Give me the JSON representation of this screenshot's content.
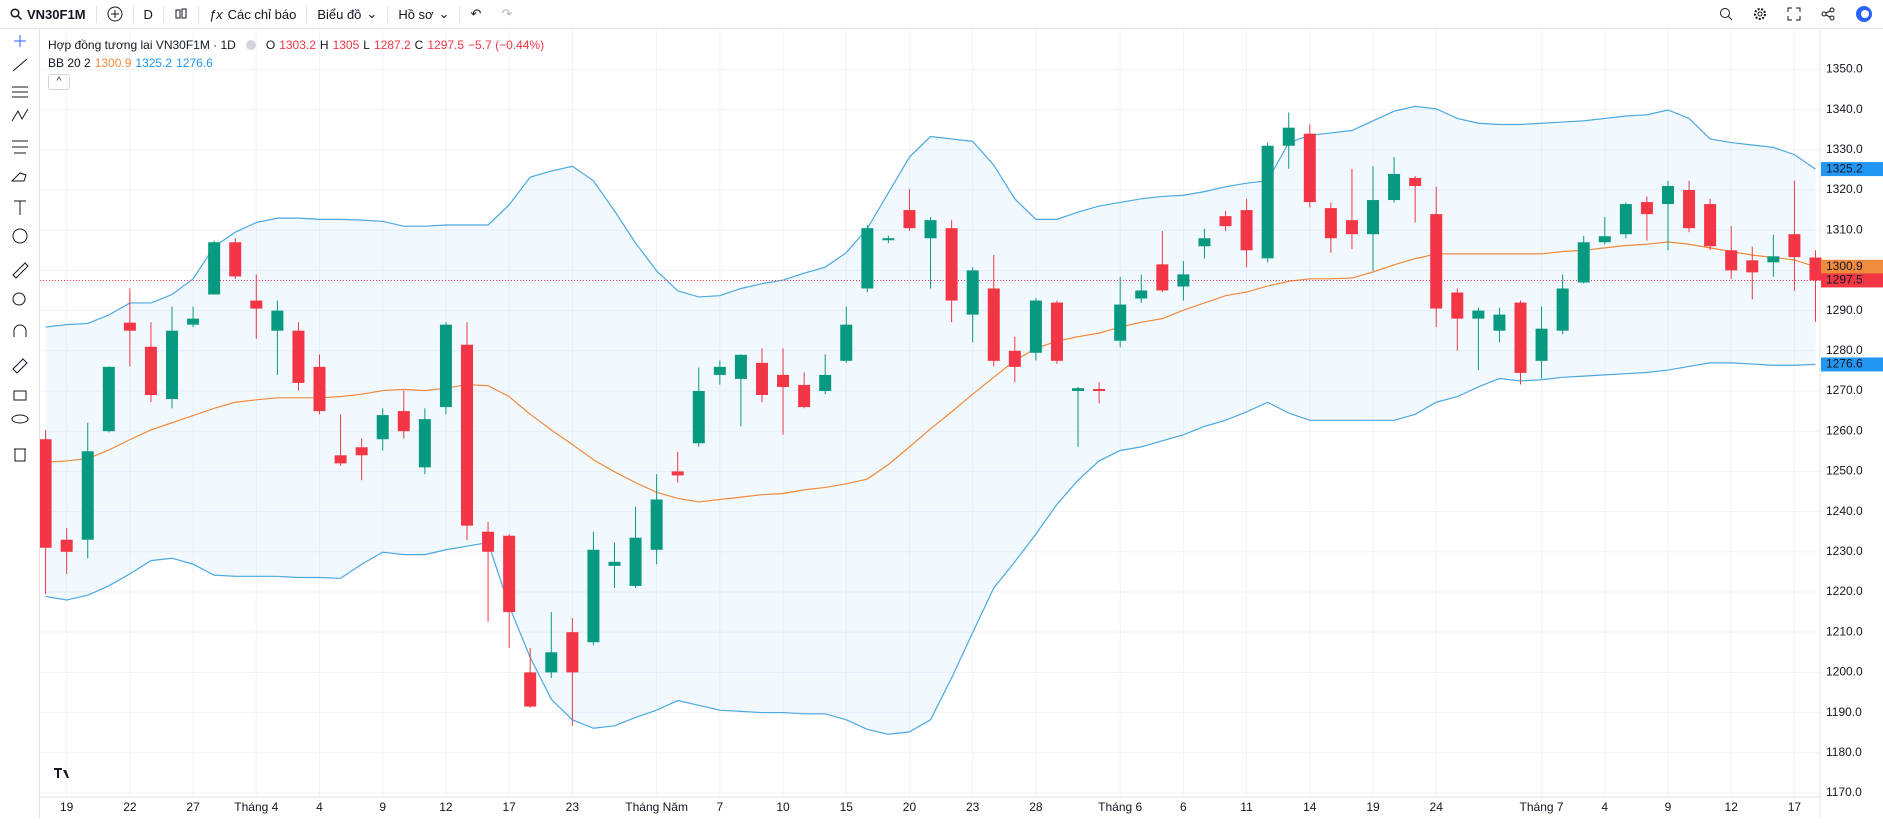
{
  "toolbar": {
    "symbol": "VN30F1M",
    "interval": "D",
    "indicators": "Các chỉ báo",
    "chart": "Biểu đồ",
    "profile": "Hồ sơ"
  },
  "legend": {
    "o": "O",
    "h": "H",
    "l": "L",
    "c": "C",
    "change": "−5.7 (−0.44%)",
    "indicator": "BB 20 2"
  },
  "chart_data": {
    "type": "candlestick",
    "title": "Hợp đồng tương lai VN30F1M · 1D",
    "up_color": "#089981",
    "down_color": "#f23645",
    "band_color": "#4ba8e0",
    "middle_color": "#f08a3c",
    "band_fill": "rgba(33,150,243,0.06)",
    "grid": true,
    "ylim": [
      1169,
      1359.8
    ],
    "yticks": [
      {
        "value": 1170,
        "label": "1170.0"
      },
      {
        "value": 1180,
        "label": "1180.0"
      },
      {
        "value": 1190,
        "label": "1190.0"
      },
      {
        "value": 1200,
        "label": "1200.0"
      },
      {
        "value": 1210,
        "label": "1210.0"
      },
      {
        "value": 1220,
        "label": "1220.0"
      },
      {
        "value": 1230,
        "label": "1230.0"
      },
      {
        "value": 1240,
        "label": "1240.0"
      },
      {
        "value": 1250,
        "label": "1250.0"
      },
      {
        "value": 1260,
        "label": "1260.0"
      },
      {
        "value": 1270,
        "label": "1270.0"
      },
      {
        "value": 1280,
        "label": "1280.0"
      },
      {
        "value": 1290,
        "label": "1290.0"
      },
      {
        "value": 1300,
        "label": "1300.0"
      },
      {
        "value": 1310,
        "label": "1310.0"
      },
      {
        "value": 1320,
        "label": "1320.0"
      },
      {
        "value": 1330,
        "label": "1330.0"
      },
      {
        "value": 1340,
        "label": "1340.0"
      },
      {
        "value": 1350,
        "label": "1350.0"
      }
    ],
    "categories": [
      null,
      "19",
      null,
      null,
      "22",
      null,
      null,
      "27",
      null,
      null,
      "Tháng 4",
      null,
      null,
      "4",
      null,
      null,
      "9",
      null,
      null,
      "12",
      null,
      null,
      "17",
      null,
      null,
      "23",
      null,
      null,
      null,
      "Tháng Năm",
      null,
      null,
      "7",
      null,
      null,
      "10",
      null,
      null,
      "15",
      null,
      null,
      "20",
      null,
      null,
      "23",
      null,
      null,
      "28",
      null,
      null,
      null,
      "Tháng 6",
      null,
      null,
      "6",
      null,
      null,
      "11",
      null,
      null,
      "14",
      null,
      null,
      "19",
      null,
      null,
      "24",
      null,
      null,
      null,
      null,
      "Tháng 7",
      null,
      null,
      "4",
      null,
      null,
      "9",
      null,
      null,
      "12",
      null,
      null,
      "17",
      null
    ],
    "open": [
      1258,
      1233,
      1233,
      1260,
      1287,
      1281,
      1268,
      1286.5,
      1294,
      1307,
      1292.5,
      1285,
      1285,
      1276,
      1254,
      1256,
      1258,
      1265,
      1251,
      1266,
      1281.5,
      1235,
      1234,
      1200,
      1200,
      1210,
      1207.5,
      1226.5,
      1221.5,
      1230.5,
      1250,
      1257,
      1274,
      1273,
      1277,
      1274,
      1271.5,
      1270,
      1277.5,
      1295.5,
      1307.5,
      1315,
      1308,
      1310.5,
      1289,
      1295.5,
      1280,
      1279.5,
      1292,
      1270,
      1270.5,
      1282.5,
      1293,
      1301.5,
      1296,
      1306,
      1313.5,
      1315,
      1303,
      1331,
      1334,
      1315.5,
      1312.5,
      1309,
      1317.5,
      1323,
      1314,
      1294.5,
      1288,
      1285,
      1292,
      1277.5,
      1285,
      1297,
      1307,
      1309,
      1317,
      1316.5,
      1320,
      1316.5,
      1305,
      1302.5,
      1302,
      1309,
      1303.2
    ],
    "high": [
      1260.3,
      1235.9,
      1262.1,
      1276.1,
      1295.5,
      1287.1,
      1291,
      1291,
      1307.4,
      1308,
      1299,
      1292.5,
      1287.1,
      1279.1,
      1264.2,
      1258.2,
      1265.7,
      1270.1,
      1265.7,
      1287.1,
      1287.1,
      1237.4,
      1234.4,
      1206.1,
      1215,
      1213.5,
      1235,
      1232.3,
      1241.2,
      1249.3,
      1254.9,
      1275.8,
      1277.6,
      1279.1,
      1280.6,
      1280.6,
      1274.6,
      1279.1,
      1291,
      1311.3,
      1308.6,
      1320.2,
      1313.3,
      1312.5,
      1300.8,
      1303.8,
      1283.5,
      1293.1,
      1292.5,
      1271,
      1272.2,
      1298.4,
      1299,
      1309.8,
      1302.3,
      1310.4,
      1314.8,
      1317.8,
      1331.8,
      1339.3,
      1336.3,
      1316.9,
      1325.3,
      1325.9,
      1328.2,
      1323.5,
      1320.8,
      1295.5,
      1290.7,
      1290.7,
      1292.5,
      1291,
      1299,
      1308.6,
      1313.3,
      1316.9,
      1318.4,
      1322.3,
      1322.3,
      1317.8,
      1311,
      1305.9,
      1308.9,
      1322.3,
      1305.0
    ],
    "low": [
      1219.5,
      1224.5,
      1228.4,
      1259.7,
      1276.1,
      1267.2,
      1265.7,
      1285.9,
      1294,
      1297.9,
      1283,
      1274,
      1270.1,
      1264.2,
      1251.4,
      1247.8,
      1255.2,
      1258.2,
      1249.3,
      1264.2,
      1232.9,
      1212.6,
      1206.1,
      1191.2,
      1198.6,
      1186.7,
      1206.7,
      1221,
      1221,
      1226.9,
      1247.2,
      1256.1,
      1271.6,
      1261.2,
      1267.2,
      1259.1,
      1265.7,
      1269.2,
      1277,
      1294.6,
      1306.8,
      1309.8,
      1295.5,
      1287.1,
      1282.1,
      1276.1,
      1272.2,
      1277.6,
      1276.7,
      1256.1,
      1266.9,
      1280.9,
      1291.9,
      1294.6,
      1292.5,
      1302.9,
      1309.8,
      1300.8,
      1302,
      1325.3,
      1315.7,
      1304.4,
      1305.3,
      1299.9,
      1316.9,
      1311.9,
      1285.9,
      1280,
      1275.2,
      1282.1,
      1271.6,
      1273.1,
      1284.1,
      1296.7,
      1306.5,
      1308,
      1307.4,
      1305,
      1309.5,
      1305,
      1297.9,
      1292.8,
      1298.4,
      1294.9,
      1287.2
    ],
    "close": [
      1231,
      1230,
      1255,
      1276,
      1285,
      1269,
      1285,
      1288,
      1307,
      1298.5,
      1290.5,
      1290,
      1272,
      1265,
      1252,
      1254,
      1264,
      1260,
      1263,
      1286.5,
      1236.5,
      1230,
      1215,
      1191.5,
      1205,
      1200,
      1230.5,
      1227.5,
      1233.5,
      1243,
      1249,
      1270,
      1276,
      1279,
      1269,
      1271,
      1266,
      1274,
      1286.5,
      1310.5,
      1308,
      1310.5,
      1312.5,
      1292.5,
      1300,
      1277.5,
      1276,
      1292.5,
      1277.5,
      1270.7,
      1270,
      1291.5,
      1295,
      1295,
      1299,
      1308,
      1311,
      1305,
      1331,
      1335.5,
      1317,
      1308,
      1309,
      1317.5,
      1324,
      1321,
      1290.5,
      1288,
      1290,
      1289,
      1274.5,
      1285.5,
      1295.5,
      1307,
      1308.5,
      1316.5,
      1314,
      1321,
      1310.5,
      1306,
      1300,
      1299.5,
      1303.5,
      1303.3,
      1297.5
    ],
    "bands": {
      "upper": [
        1285.9,
        1286.5,
        1286.8,
        1288.9,
        1291.9,
        1291.9,
        1294,
        1297.9,
        1305.9,
        1309.5,
        1311.9,
        1313,
        1313,
        1312.7,
        1312.7,
        1312.5,
        1312.2,
        1311,
        1311,
        1311.3,
        1311.3,
        1311.3,
        1316.3,
        1323.2,
        1324.7,
        1325.9,
        1322.3,
        1314.8,
        1306.8,
        1299.9,
        1294.9,
        1293.4,
        1293.7,
        1295.5,
        1296.7,
        1297.6,
        1299.3,
        1300.8,
        1304.4,
        1310.4,
        1319.3,
        1328.2,
        1333.3,
        1332.7,
        1332.1,
        1326.2,
        1317.8,
        1312.7,
        1312.7,
        1314.5,
        1316,
        1316.9,
        1317.8,
        1318.4,
        1318.7,
        1319.6,
        1320.8,
        1321.7,
        1322.3,
        1331.8,
        1333.6,
        1334.2,
        1334.8,
        1337.2,
        1339.6,
        1340.8,
        1340.2,
        1337.8,
        1336.6,
        1336.3,
        1336.3,
        1336.6,
        1336.9,
        1337.2,
        1337.8,
        1338.4,
        1338.7,
        1339.9,
        1337.8,
        1332.7,
        1331.8,
        1331.2,
        1330.6,
        1328.8,
        1325.2
      ],
      "middle": [
        1252.3,
        1252.6,
        1253.2,
        1255.3,
        1257.9,
        1260.3,
        1262.1,
        1263.9,
        1265.7,
        1267.2,
        1267.8,
        1268.3,
        1268.3,
        1268.3,
        1268.6,
        1269.2,
        1270.1,
        1270.4,
        1270.1,
        1270.7,
        1271.6,
        1271.3,
        1268.6,
        1264.2,
        1260.3,
        1256.7,
        1252.9,
        1249.9,
        1247.2,
        1244.8,
        1243.3,
        1242.4,
        1243,
        1243.6,
        1244.2,
        1244.5,
        1245.4,
        1246,
        1246.9,
        1248.1,
        1251.7,
        1256.1,
        1260.6,
        1264.8,
        1269.2,
        1273.4,
        1277.6,
        1280.6,
        1282.4,
        1283.5,
        1284.4,
        1285.9,
        1287.1,
        1288,
        1290.1,
        1291.9,
        1293.7,
        1294.6,
        1296.1,
        1297.3,
        1297.9,
        1297.9,
        1298.1,
        1299.6,
        1301.4,
        1302.9,
        1304.1,
        1304.1,
        1304.1,
        1304.1,
        1304.1,
        1304.1,
        1304.7,
        1305,
        1305.6,
        1306.2,
        1306.5,
        1307.1,
        1306.5,
        1305.6,
        1304.7,
        1303.8,
        1303.2,
        1302.6,
        1300.9
      ],
      "lower": [
        1218.9,
        1218,
        1219.2,
        1221.5,
        1224.5,
        1227.8,
        1228.4,
        1226.9,
        1224.2,
        1223.9,
        1223.9,
        1223.9,
        1223.6,
        1223.6,
        1223.4,
        1226.9,
        1229.9,
        1229.3,
        1229.3,
        1230.5,
        1231.4,
        1232.3,
        1216.5,
        1203.7,
        1193.3,
        1188.2,
        1186.1,
        1186.7,
        1188.8,
        1190.6,
        1193,
        1191.8,
        1190.6,
        1190.3,
        1190,
        1190,
        1189.7,
        1189.7,
        1188.2,
        1185.8,
        1184.6,
        1185.2,
        1188.2,
        1198.6,
        1209.9,
        1221,
        1227.5,
        1234.4,
        1241.8,
        1247.8,
        1252.6,
        1255.2,
        1256.1,
        1257.6,
        1259.1,
        1261.2,
        1262.7,
        1264.8,
        1267.2,
        1264.5,
        1262.7,
        1262.7,
        1262.7,
        1262.7,
        1262.7,
        1264.2,
        1267.2,
        1268.6,
        1271,
        1273.1,
        1272.5,
        1272.8,
        1273.4,
        1273.7,
        1274,
        1274.3,
        1274.6,
        1275.2,
        1276.1,
        1277,
        1277,
        1276.7,
        1276.4,
        1276.4,
        1276.6
      ]
    }
  }
}
